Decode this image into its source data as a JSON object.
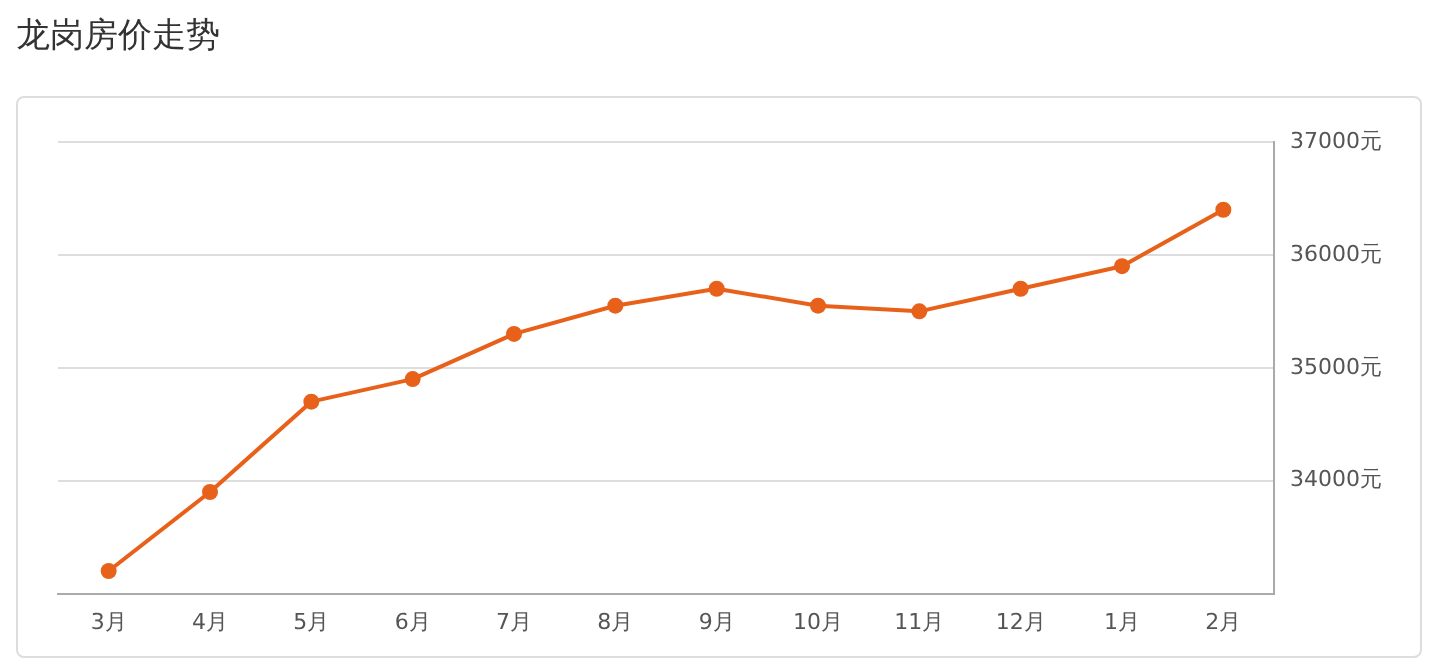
{
  "chart_data": {
    "type": "line",
    "title": "龙岗房价走势",
    "categories": [
      "3月",
      "4月",
      "5月",
      "6月",
      "7月",
      "8月",
      "9月",
      "10月",
      "11月",
      "12月",
      "1月",
      "2月"
    ],
    "series": [
      {
        "color": "#e8611a",
        "values": [
          33200,
          33900,
          34700,
          34900,
          35300,
          35550,
          35700,
          35550,
          35500,
          35700,
          35900,
          36400
        ]
      }
    ],
    "ylim": [
      33000,
      37000
    ],
    "yticks": [
      {
        "value": 34000,
        "label": "34000元"
      },
      {
        "value": 35000,
        "label": "35000元"
      },
      {
        "value": 36000,
        "label": "36000元"
      },
      {
        "value": 37000,
        "label": "37000元"
      }
    ],
    "grid": "y",
    "marker": "circle",
    "line_style": "solid",
    "legend": false
  }
}
